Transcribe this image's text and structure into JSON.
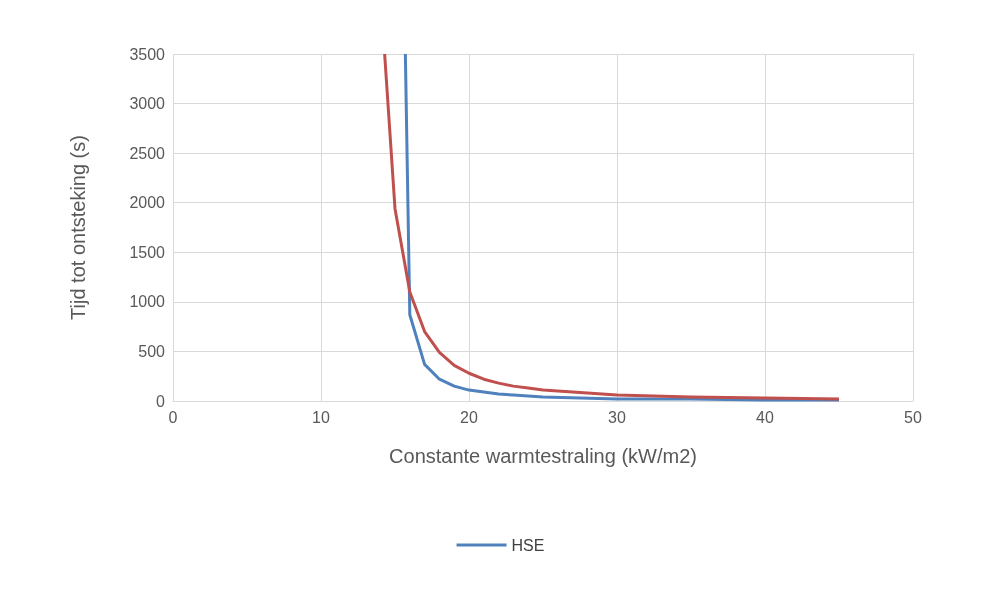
{
  "chart_data": {
    "type": "line",
    "xlabel": "Constante warmtestraling (kW/m2)",
    "ylabel": "Tijd tot ontsteking (s)",
    "xlim": [
      0,
      50
    ],
    "xticks": [
      0,
      10,
      20,
      30,
      40,
      50
    ],
    "ylim": [
      0,
      3500
    ],
    "yticks": [
      0,
      500,
      1000,
      1500,
      2000,
      2500,
      3000,
      3500
    ],
    "grid": true,
    "legend": "bottom",
    "marker": "none",
    "line_style": "solid",
    "series": [
      {
        "name": "HSE",
        "color": "#4f81bd",
        "x": [
          15.7,
          16,
          17,
          18,
          19,
          20,
          21,
          22,
          23,
          25,
          30,
          35,
          40,
          45
        ],
        "values": [
          3500,
          870,
          370,
          220,
          150,
          110,
          90,
          70,
          60,
          40,
          20,
          20,
          10,
          10
        ]
      },
      {
        "color": "#c0504d",
        "x": [
          14.3,
          15,
          16,
          17,
          18,
          19,
          20,
          21,
          22,
          23,
          24,
          25,
          27,
          30,
          35,
          40,
          45
        ],
        "values": [
          3500,
          1940,
          1100,
          700,
          490,
          360,
          280,
          220,
          180,
          150,
          130,
          110,
          90,
          60,
          40,
          30,
          20
        ]
      }
    ]
  }
}
